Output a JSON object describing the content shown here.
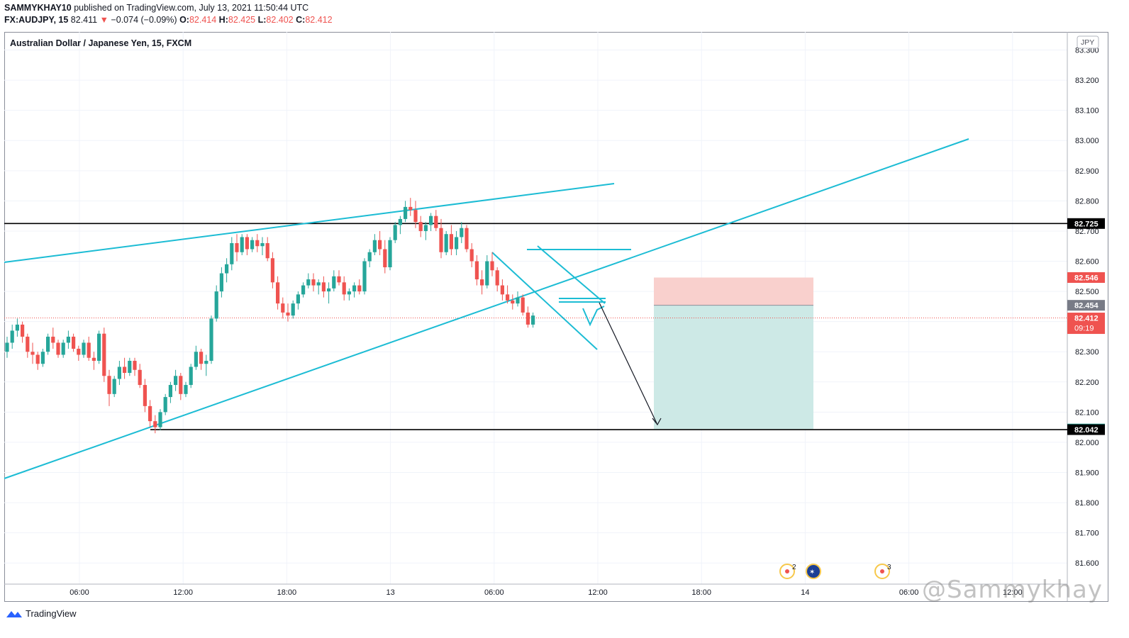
{
  "header": {
    "author": "SAMMYKHAY10",
    "published_text": "published on TradingView.com, July 13, 2021 11:50:44 UTC",
    "symbol": "FX:AUDJPY, 15",
    "last": "82.411",
    "change": "−0.074 (−0.09%)",
    "o_label": "O:",
    "o": "82.414",
    "h_label": "H:",
    "h": "82.425",
    "l_label": "L:",
    "l": "82.402",
    "c_label": "C:",
    "c": "82.412"
  },
  "chart_title": "Australian Dollar / Japanese Yen, 15, FXCM",
  "currency_badge": "JPY",
  "branding": {
    "logo_text": "TradingView",
    "watermark": "@Sammykhay"
  },
  "events": [
    {
      "icon": "economic-event-icon",
      "count": "2"
    },
    {
      "icon": "australia-flag-icon",
      "count": ""
    },
    {
      "icon": "economic-event-icon",
      "count": "3"
    }
  ],
  "colors": {
    "up": "#26a69a",
    "down": "#ef5350",
    "trendline": "#1cbcd4",
    "level": "#000000",
    "stop_zone": "#f9d0cd",
    "target_zone": "#cde9e6"
  },
  "chart_data": {
    "type": "candlestick",
    "title": "Australian Dollar / Japanese Yen, 15, FXCM",
    "x_ticks": [
      "06:00",
      "12:00",
      "18:00",
      "13",
      "06:00",
      "12:00",
      "18:00",
      "14",
      "06:00",
      "12:00"
    ],
    "y_ticks": [
      "81.600",
      "81.700",
      "81.800",
      "81.900",
      "82.000",
      "82.100",
      "82.200",
      "82.300",
      "82.400",
      "82.500",
      "82.600",
      "82.700",
      "82.800",
      "82.900",
      "83.000",
      "83.100",
      "83.200",
      "83.300"
    ],
    "ylim": [
      81.53,
      83.36
    ],
    "price_labels": [
      {
        "value": "82.725",
        "role": "horizontal-level"
      },
      {
        "value": "82.546",
        "role": "stop-loss"
      },
      {
        "value": "82.454",
        "role": "entry"
      },
      {
        "value": "82.412",
        "role": "last-price",
        "countdown": "09:19"
      },
      {
        "value": "82.044",
        "role": "take-profit"
      },
      {
        "value": "82.042",
        "role": "horizontal-level"
      }
    ],
    "levels": [
      82.725,
      82.042
    ],
    "position": {
      "direction": "short",
      "entry": 82.454,
      "stop": 82.546,
      "target": 82.044
    },
    "candles": [
      [
        82.3,
        82.35,
        82.28,
        82.33
      ],
      [
        82.33,
        82.39,
        82.31,
        82.37
      ],
      [
        82.37,
        82.41,
        82.35,
        82.39
      ],
      [
        82.39,
        82.4,
        82.33,
        82.35
      ],
      [
        82.35,
        82.36,
        82.28,
        82.3
      ],
      [
        82.3,
        82.33,
        82.26,
        82.29
      ],
      [
        82.29,
        82.3,
        82.24,
        82.26
      ],
      [
        82.26,
        82.31,
        82.25,
        82.3
      ],
      [
        82.3,
        82.36,
        82.29,
        82.35
      ],
      [
        82.35,
        82.38,
        82.31,
        82.33
      ],
      [
        82.33,
        82.34,
        82.28,
        82.29
      ],
      [
        82.29,
        82.34,
        82.28,
        82.33
      ],
      [
        82.33,
        82.37,
        82.31,
        82.35
      ],
      [
        82.35,
        82.36,
        82.3,
        82.31
      ],
      [
        82.31,
        82.32,
        82.27,
        82.29
      ],
      [
        82.29,
        82.34,
        82.28,
        82.33
      ],
      [
        82.33,
        82.35,
        82.27,
        82.28
      ],
      [
        82.28,
        82.3,
        82.24,
        82.27
      ],
      [
        82.27,
        82.37,
        82.26,
        82.36
      ],
      [
        82.36,
        82.38,
        82.2,
        82.22
      ],
      [
        82.22,
        82.24,
        82.12,
        82.16
      ],
      [
        82.16,
        82.22,
        82.15,
        82.21
      ],
      [
        82.21,
        82.27,
        82.19,
        82.25
      ],
      [
        82.25,
        82.28,
        82.21,
        82.23
      ],
      [
        82.23,
        82.28,
        82.22,
        82.27
      ],
      [
        82.27,
        82.28,
        82.22,
        82.24
      ],
      [
        82.24,
        82.26,
        82.18,
        82.19
      ],
      [
        82.19,
        82.21,
        82.1,
        82.12
      ],
      [
        82.12,
        82.14,
        82.05,
        82.07
      ],
      [
        82.07,
        82.09,
        82.03,
        82.05
      ],
      [
        82.05,
        82.11,
        82.04,
        82.1
      ],
      [
        82.1,
        82.16,
        82.09,
        82.15
      ],
      [
        82.15,
        82.2,
        82.13,
        82.19
      ],
      [
        82.19,
        82.24,
        82.17,
        82.22
      ],
      [
        82.22,
        82.23,
        82.14,
        82.16
      ],
      [
        82.16,
        82.2,
        82.15,
        82.19
      ],
      [
        82.19,
        82.26,
        82.18,
        82.25
      ],
      [
        82.25,
        82.32,
        82.24,
        82.3
      ],
      [
        82.3,
        82.31,
        82.24,
        82.26
      ],
      [
        82.26,
        82.29,
        82.22,
        82.27
      ],
      [
        82.27,
        82.42,
        82.26,
        82.41
      ],
      [
        82.41,
        82.52,
        82.4,
        82.5
      ],
      [
        82.5,
        82.58,
        82.48,
        82.56
      ],
      [
        82.56,
        82.61,
        82.53,
        82.59
      ],
      [
        82.59,
        82.68,
        82.57,
        82.66
      ],
      [
        82.66,
        82.69,
        82.6,
        82.63
      ],
      [
        82.63,
        82.69,
        82.62,
        82.68
      ],
      [
        82.68,
        82.69,
        82.62,
        82.64
      ],
      [
        82.64,
        82.68,
        82.63,
        82.67
      ],
      [
        82.67,
        82.69,
        82.63,
        82.65
      ],
      [
        82.65,
        82.68,
        82.62,
        82.66
      ],
      [
        82.66,
        82.68,
        82.6,
        82.61
      ],
      [
        82.61,
        82.63,
        82.51,
        82.53
      ],
      [
        82.53,
        82.55,
        82.44,
        82.46
      ],
      [
        82.46,
        82.48,
        82.41,
        82.43
      ],
      [
        82.43,
        82.46,
        82.4,
        82.42
      ],
      [
        82.42,
        82.47,
        82.41,
        82.46
      ],
      [
        82.46,
        82.5,
        82.44,
        82.49
      ],
      [
        82.49,
        82.53,
        82.48,
        82.52
      ],
      [
        82.52,
        82.56,
        82.51,
        82.54
      ],
      [
        82.54,
        82.56,
        82.5,
        82.52
      ],
      [
        82.52,
        82.54,
        82.49,
        82.53
      ],
      [
        82.53,
        82.55,
        82.48,
        82.5
      ],
      [
        82.5,
        82.53,
        82.46,
        82.51
      ],
      [
        82.51,
        82.57,
        82.5,
        82.55
      ],
      [
        82.55,
        82.57,
        82.52,
        82.53
      ],
      [
        82.53,
        82.55,
        82.47,
        82.49
      ],
      [
        82.49,
        82.51,
        82.47,
        82.5
      ],
      [
        82.5,
        82.53,
        82.48,
        82.52
      ],
      [
        82.52,
        82.54,
        82.49,
        82.5
      ],
      [
        82.5,
        82.61,
        82.49,
        82.6
      ],
      [
        82.6,
        82.64,
        82.58,
        82.63
      ],
      [
        82.63,
        82.69,
        82.62,
        82.67
      ],
      [
        82.67,
        82.7,
        82.62,
        82.64
      ],
      [
        82.64,
        82.67,
        82.56,
        82.58
      ],
      [
        82.58,
        82.68,
        82.57,
        82.67
      ],
      [
        82.67,
        82.73,
        82.66,
        82.72
      ],
      [
        82.72,
        82.75,
        82.69,
        82.74
      ],
      [
        82.74,
        82.8,
        82.73,
        82.78
      ],
      [
        82.78,
        82.81,
        82.75,
        82.77
      ],
      [
        82.77,
        82.8,
        82.71,
        82.73
      ],
      [
        82.73,
        82.75,
        82.68,
        82.7
      ],
      [
        82.7,
        82.73,
        82.67,
        82.72
      ],
      [
        82.72,
        82.76,
        82.7,
        82.75
      ],
      [
        82.75,
        82.77,
        82.7,
        82.71
      ],
      [
        82.71,
        82.74,
        82.61,
        82.63
      ],
      [
        82.63,
        82.7,
        82.62,
        82.69
      ],
      [
        82.69,
        82.72,
        82.62,
        82.64
      ],
      [
        82.64,
        82.7,
        82.62,
        82.68
      ],
      [
        82.68,
        82.73,
        82.66,
        82.71
      ],
      [
        82.71,
        82.72,
        82.63,
        82.64
      ],
      [
        82.64,
        82.66,
        82.58,
        82.6
      ],
      [
        82.6,
        82.62,
        82.52,
        82.54
      ],
      [
        82.54,
        82.57,
        82.49,
        82.52
      ],
      [
        82.52,
        82.62,
        82.51,
        82.6
      ],
      [
        82.6,
        82.63,
        82.55,
        82.57
      ],
      [
        82.57,
        82.58,
        82.5,
        82.52
      ],
      [
        82.52,
        82.54,
        82.47,
        82.49
      ],
      [
        82.49,
        82.52,
        82.46,
        82.47
      ],
      [
        82.47,
        82.49,
        82.44,
        82.46
      ],
      [
        82.46,
        82.5,
        82.45,
        82.48
      ],
      [
        82.48,
        82.49,
        82.42,
        82.43
      ],
      [
        82.43,
        82.45,
        82.38,
        82.39
      ],
      [
        82.39,
        82.43,
        82.38,
        82.42
      ]
    ],
    "candles_format": "[open, high, low, close]"
  }
}
